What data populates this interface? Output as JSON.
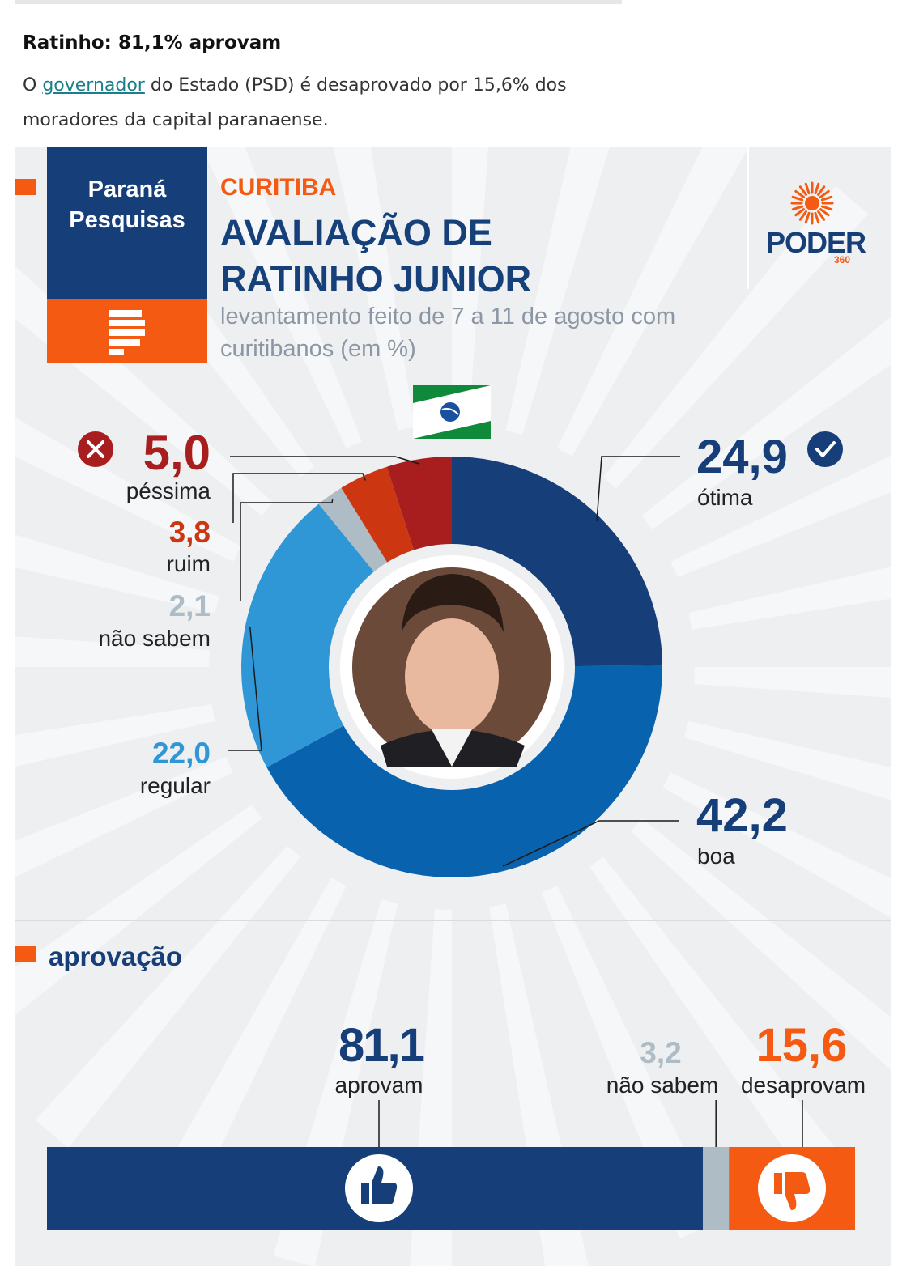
{
  "article": {
    "title": "Ratinho: 81,1% aprovam",
    "text_before": "O ",
    "link": "governador",
    "text_after": " do Estado (PSD) é desaprovado por 15,6% dos moradores da capital paranaense."
  },
  "card": {
    "logo_name": "Paraná Pesquisas",
    "kicker": "CURITIBA",
    "title": "AVALIAÇÃO DE RATINHO JUNIOR",
    "subtitle": "levantamento feito de 7 a 11 de agosto com curitibanos (em %)",
    "brand": "PODER",
    "brand_num": "360",
    "approval_title": "aprovação"
  },
  "colors": {
    "otima": "#163e78",
    "boa": "#0962ad",
    "regular": "#2f97d6",
    "nao_sabem": "#aebcc6",
    "ruim": "#cc3711",
    "pessima": "#a81d1d",
    "aprovam": "#163e78",
    "desaprovam": "#f45a12",
    "accent": "#f45a12"
  },
  "chart_data": [
    {
      "type": "pie",
      "title": "AVALIAÇÃO DE RATINHO JUNIOR",
      "subtitle": "levantamento feito de 7 a 11 de agosto com curitibanos (em %)",
      "categories": [
        "ótima",
        "boa",
        "regular",
        "não sabem",
        "ruim",
        "péssima"
      ],
      "values": [
        24.9,
        42.2,
        22.0,
        2.1,
        3.8,
        5.0
      ],
      "labels": [
        "24,9",
        "42,2",
        "22,0",
        "2,1",
        "3,8",
        "5,0"
      ]
    },
    {
      "type": "bar",
      "title": "aprovação",
      "categories": [
        "aprovam",
        "não sabem",
        "desaprovam"
      ],
      "values": [
        81.1,
        3.2,
        15.6
      ],
      "labels": [
        "81,1",
        "3,2",
        "15,6"
      ]
    }
  ]
}
